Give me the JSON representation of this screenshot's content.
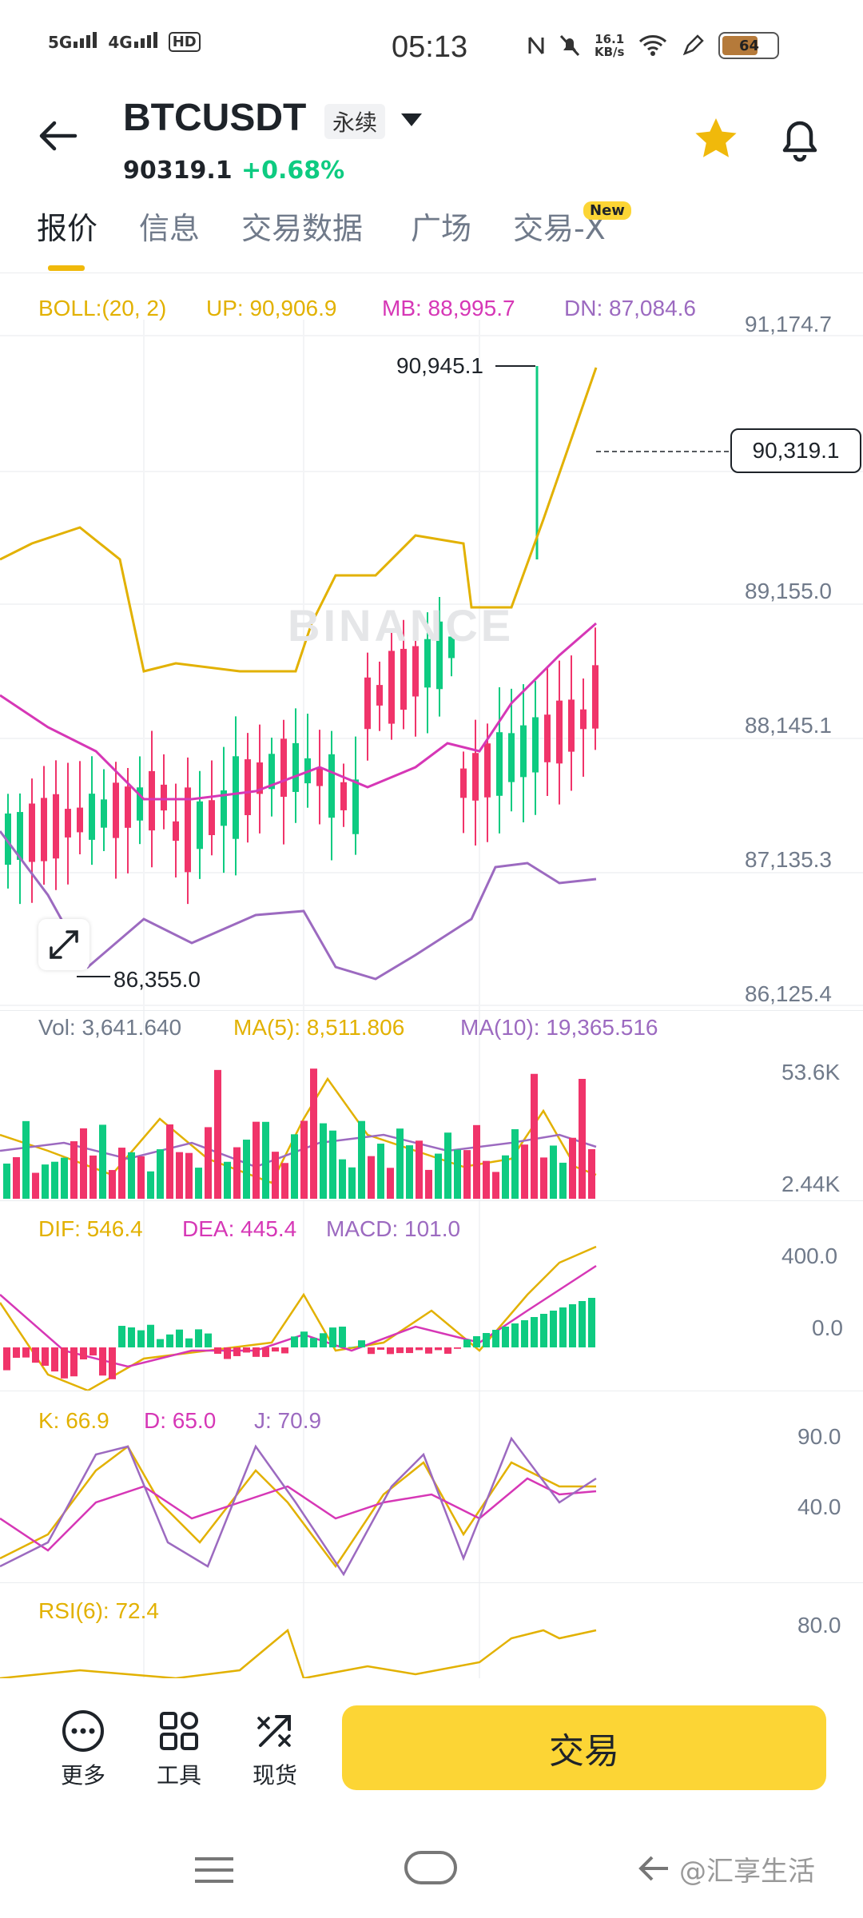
{
  "status_bar": {
    "time": "05:13",
    "sig1": "5G",
    "sig2": "4G",
    "hd": "HD",
    "speed_val": "16.1",
    "speed_unit": "KB/s",
    "battery": "64"
  },
  "header": {
    "pair": "BTCUSDT",
    "contract": "永续",
    "price": "90319.1",
    "change": "+0.68%"
  },
  "tabs": [
    {
      "label": "报价"
    },
    {
      "label": "信息"
    },
    {
      "label": "交易数据"
    },
    {
      "label": "广场"
    },
    {
      "label": "交易-X"
    }
  ],
  "tab_badge": "New",
  "main_chart": {
    "boll": {
      "label": "BOLL:(20, 2)",
      "up": "UP: 90,906.9",
      "mb": "MB: 88,995.7",
      "dn": "DN: 87,084.6"
    },
    "y_axis": [
      "91,174.7",
      "89,155.0",
      "88,145.1",
      "87,135.3",
      "86,125.4"
    ],
    "high_label": "90,945.1",
    "low_label": "86,355.0",
    "current_price": "90,319.1",
    "watermark": "BINANCE"
  },
  "volume": {
    "vol": "Vol: 3,641.640",
    "ma5": "MA(5): 8,511.806",
    "ma10": "MA(10): 19,365.516",
    "y_axis": [
      "53.6K",
      "2.44K"
    ]
  },
  "macd": {
    "dif": "DIF: 546.4",
    "dea": "DEA: 445.4",
    "macd": "MACD: 101.0",
    "y_axis": [
      "400.0",
      "0.0"
    ]
  },
  "kdj": {
    "k": "K: 66.9",
    "d": "D: 65.0",
    "j": "J: 70.9",
    "y_axis": [
      "90.0",
      "40.0"
    ]
  },
  "rsi": {
    "rsi6": "RSI(6): 72.4",
    "y_axis": [
      "80.0"
    ]
  },
  "bottom_bar": {
    "more": "更多",
    "tools": "工具",
    "spot": "现货",
    "trade": "交易"
  },
  "watermark_corner": "@汇享生活",
  "colors": {
    "up": "#0ecb81",
    "down": "#f0346a",
    "accent": "#fcd535"
  }
}
